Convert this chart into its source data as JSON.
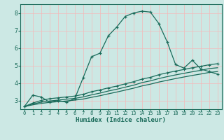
{
  "xlabel": "Humidex (Indice chaleur)",
  "bg_color": "#cce8e4",
  "line_color": "#1a6b5a",
  "grid_color": "#f5b8b8",
  "xlim": [
    -0.5,
    23.5
  ],
  "ylim": [
    2.5,
    8.5
  ],
  "xticks": [
    0,
    1,
    2,
    3,
    4,
    5,
    6,
    7,
    8,
    9,
    10,
    11,
    12,
    13,
    14,
    15,
    16,
    17,
    18,
    19,
    20,
    21,
    22,
    23
  ],
  "yticks": [
    3,
    4,
    5,
    6,
    7,
    8
  ],
  "line1_x": [
    0,
    1,
    2,
    3,
    4,
    5,
    6,
    7,
    8,
    9,
    10,
    11,
    12,
    13,
    14,
    15,
    16,
    17,
    18,
    19,
    20,
    21,
    22,
    23
  ],
  "line1_y": [
    2.65,
    3.3,
    3.2,
    2.9,
    3.0,
    2.9,
    3.1,
    4.3,
    5.5,
    5.7,
    6.7,
    7.2,
    7.8,
    8.0,
    8.1,
    8.05,
    7.4,
    6.35,
    5.05,
    4.85,
    5.3,
    4.8,
    4.65,
    4.5
  ],
  "line2_x": [
    0,
    1,
    2,
    3,
    4,
    5,
    6,
    7,
    8,
    9,
    10,
    11,
    12,
    13,
    14,
    15,
    16,
    17,
    18,
    19,
    20,
    21,
    22,
    23
  ],
  "line2_y": [
    2.65,
    2.85,
    3.0,
    3.1,
    3.15,
    3.2,
    3.25,
    3.35,
    3.5,
    3.6,
    3.72,
    3.82,
    3.95,
    4.07,
    4.22,
    4.32,
    4.47,
    4.58,
    4.68,
    4.77,
    4.87,
    4.95,
    5.04,
    5.1
  ],
  "line3_x": [
    0,
    1,
    2,
    3,
    4,
    5,
    6,
    7,
    8,
    9,
    10,
    11,
    12,
    13,
    14,
    15,
    16,
    17,
    18,
    19,
    20,
    21,
    22,
    23
  ],
  "line3_y": [
    2.65,
    2.8,
    2.9,
    2.97,
    3.02,
    3.07,
    3.12,
    3.2,
    3.32,
    3.42,
    3.54,
    3.64,
    3.76,
    3.87,
    4.02,
    4.12,
    4.25,
    4.36,
    4.46,
    4.55,
    4.64,
    4.72,
    4.82,
    4.87
  ],
  "line4_x": [
    0,
    1,
    2,
    3,
    4,
    5,
    6,
    7,
    8,
    9,
    10,
    11,
    12,
    13,
    14,
    15,
    16,
    17,
    18,
    19,
    20,
    21,
    22,
    23
  ],
  "line4_y": [
    2.65,
    2.75,
    2.83,
    2.89,
    2.93,
    2.97,
    3.02,
    3.08,
    3.18,
    3.27,
    3.38,
    3.48,
    3.59,
    3.7,
    3.83,
    3.93,
    4.05,
    4.15,
    4.25,
    4.34,
    4.43,
    4.51,
    4.6,
    4.65
  ]
}
